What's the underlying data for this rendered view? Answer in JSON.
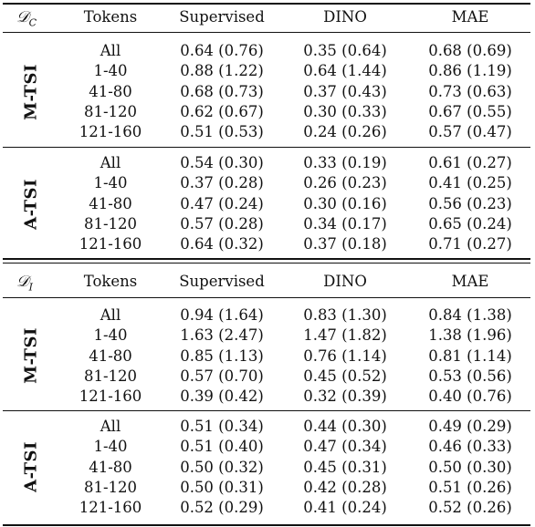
{
  "columns": [
    "Tokens",
    "Supervised",
    "DINO",
    "MAE"
  ],
  "tables": [
    {
      "dataset_symbol": "𝒟",
      "dataset_sub": "C",
      "groups": [
        {
          "name": "M-TSI",
          "rows": [
            {
              "tokens": "All",
              "supervised": "0.64 (0.76)",
              "dino": "0.35 (0.64)",
              "mae": "0.68 (0.69)"
            },
            {
              "tokens": "1-40",
              "supervised": "0.88 (1.22)",
              "dino": "0.64 (1.44)",
              "mae": "0.86 (1.19)"
            },
            {
              "tokens": "41-80",
              "supervised": "0.68 (0.73)",
              "dino": "0.37 (0.43)",
              "mae": "0.73 (0.63)"
            },
            {
              "tokens": "81-120",
              "supervised": "0.62 (0.67)",
              "dino": "0.30 (0.33)",
              "mae": "0.67 (0.55)"
            },
            {
              "tokens": "121-160",
              "supervised": "0.51 (0.53)",
              "dino": "0.24 (0.26)",
              "mae": "0.57 (0.47)"
            }
          ]
        },
        {
          "name": "A-TSI",
          "rows": [
            {
              "tokens": "All",
              "supervised": "0.54 (0.30)",
              "dino": "0.33 (0.19)",
              "mae": "0.61 (0.27)"
            },
            {
              "tokens": "1-40",
              "supervised": "0.37 (0.28)",
              "dino": "0.26 (0.23)",
              "mae": "0.41 (0.25)"
            },
            {
              "tokens": "41-80",
              "supervised": "0.47 (0.24)",
              "dino": "0.30 (0.16)",
              "mae": "0.56 (0.23)"
            },
            {
              "tokens": "81-120",
              "supervised": "0.57 (0.28)",
              "dino": "0.34 (0.17)",
              "mae": "0.65 (0.24)"
            },
            {
              "tokens": "121-160",
              "supervised": "0.64 (0.32)",
              "dino": "0.37 (0.18)",
              "mae": "0.71 (0.27)"
            }
          ]
        }
      ]
    },
    {
      "dataset_symbol": "𝒟",
      "dataset_sub": "I",
      "groups": [
        {
          "name": "M-TSI",
          "rows": [
            {
              "tokens": "All",
              "supervised": "0.94 (1.64)",
              "dino": "0.83 (1.30)",
              "mae": "0.84 (1.38)"
            },
            {
              "tokens": "1-40",
              "supervised": "1.63 (2.47)",
              "dino": "1.47 (1.82)",
              "mae": "1.38 (1.96)"
            },
            {
              "tokens": "41-80",
              "supervised": "0.85 (1.13)",
              "dino": "0.76 (1.14)",
              "mae": "0.81 (1.14)"
            },
            {
              "tokens": "81-120",
              "supervised": "0.57 (0.70)",
              "dino": "0.45 (0.52)",
              "mae": "0.53 (0.56)"
            },
            {
              "tokens": "121-160",
              "supervised": "0.39 (0.42)",
              "dino": "0.32 (0.39)",
              "mae": "0.40 (0.76)"
            }
          ]
        },
        {
          "name": "A-TSI",
          "rows": [
            {
              "tokens": "All",
              "supervised": "0.51 (0.34)",
              "dino": "0.44 (0.30)",
              "mae": "0.49 (0.29)"
            },
            {
              "tokens": "1-40",
              "supervised": "0.51 (0.40)",
              "dino": "0.47 (0.34)",
              "mae": "0.46 (0.33)"
            },
            {
              "tokens": "41-80",
              "supervised": "0.50 (0.32)",
              "dino": "0.45 (0.31)",
              "mae": "0.50 (0.30)"
            },
            {
              "tokens": "81-120",
              "supervised": "0.50 (0.31)",
              "dino": "0.42 (0.28)",
              "mae": "0.51 (0.26)"
            },
            {
              "tokens": "121-160",
              "supervised": "0.52 (0.29)",
              "dino": "0.41 (0.24)",
              "mae": "0.52 (0.26)"
            }
          ]
        }
      ]
    }
  ]
}
